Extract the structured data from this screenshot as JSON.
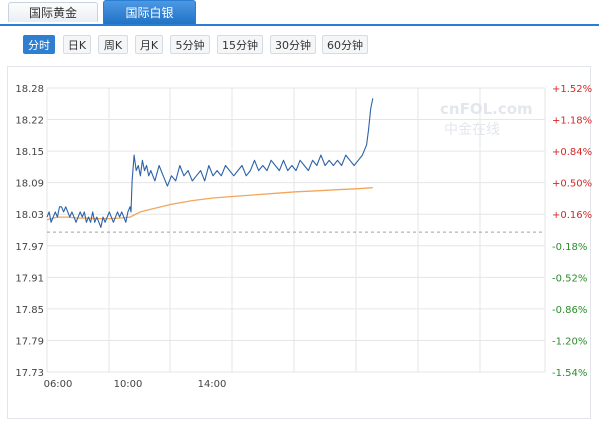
{
  "tabs": [
    {
      "label": "国际黄金",
      "active": false
    },
    {
      "label": "国际白银",
      "active": true
    }
  ],
  "periods": [
    "分时",
    "日K",
    "周K",
    "月K",
    "5分钟",
    "15分钟",
    "30分钟",
    "60分钟"
  ],
  "active_period": "分时",
  "watermark": {
    "top": "cnFOL.com",
    "bottom": "中金在线"
  },
  "colors": {
    "price_line": "#2b62a8",
    "avg_line": "#f2a65a",
    "up": "#d62728",
    "down": "#2c8c2c",
    "axis_text": "#444444",
    "accent": "#2a7fd4"
  },
  "chart_data": {
    "type": "line",
    "title": "",
    "xlabel": "",
    "ylabel": "",
    "ylim": [
      17.73,
      18.28
    ],
    "y_ticks": [
      "18.28",
      "18.22",
      "18.15",
      "18.09",
      "18.03",
      "17.97",
      "17.91",
      "17.85",
      "17.79",
      "17.73"
    ],
    "right_ticks": [
      "+1.52%",
      "+1.18%",
      "+0.84%",
      "+0.50%",
      "+0.16%",
      "-0.18%",
      "-0.52%",
      "-0.86%",
      "-1.20%",
      "-1.54%"
    ],
    "x_ticks": [
      "06:00",
      "10:00",
      "14:00"
    ],
    "reference_price": 18.001,
    "series": [
      {
        "x": [
          0,
          0.1,
          0.2,
          0.3,
          0.4,
          0.5,
          0.6,
          0.7,
          0.8,
          0.9,
          1.0,
          1.1,
          1.2,
          1.3,
          1.4,
          1.5,
          1.6,
          1.7,
          1.8,
          1.9,
          2.0,
          2.1,
          2.2,
          2.3,
          2.4,
          2.5,
          2.6,
          2.7,
          2.8,
          2.9,
          3.0,
          3.1,
          3.2,
          3.3,
          3.4,
          3.5,
          3.6,
          3.7,
          3.8,
          3.9,
          4.0,
          4.05,
          4.1,
          4.2,
          4.3,
          4.4,
          4.5,
          4.6,
          4.7,
          4.8,
          4.9,
          5.0,
          5.2,
          5.4,
          5.6,
          5.8,
          6.0,
          6.2,
          6.4,
          6.6,
          6.8,
          7.0,
          7.2,
          7.4,
          7.6,
          7.8,
          8.0,
          8.2,
          8.4,
          8.6,
          8.8,
          9.0,
          9.2,
          9.4,
          9.6,
          9.8,
          10.0,
          10.2,
          10.4,
          10.6,
          10.8,
          11.0,
          11.2,
          11.4,
          11.6,
          11.8,
          12.0,
          12.2,
          12.4,
          12.6,
          12.8,
          13.0,
          13.2,
          13.4,
          13.6,
          13.8,
          14.0,
          14.2,
          14.4,
          14.6,
          14.8,
          15.0,
          15.2,
          15.4,
          15.5,
          15.6,
          15.7
        ],
        "values": [
          18.03,
          18.04,
          18.02,
          18.03,
          18.04,
          18.03,
          18.05,
          18.05,
          18.04,
          18.05,
          18.04,
          18.03,
          18.04,
          18.03,
          18.02,
          18.03,
          18.04,
          18.03,
          18.04,
          18.02,
          18.03,
          18.02,
          18.04,
          18.02,
          18.03,
          18.02,
          18.01,
          18.03,
          18.02,
          18.03,
          18.04,
          18.03,
          18.02,
          18.03,
          18.04,
          18.03,
          18.04,
          18.03,
          18.02,
          18.04,
          18.05,
          18.04,
          18.1,
          18.15,
          18.12,
          18.13,
          18.11,
          18.14,
          18.12,
          18.13,
          18.11,
          18.12,
          18.1,
          18.13,
          18.11,
          18.09,
          18.11,
          18.1,
          18.13,
          18.11,
          18.12,
          18.1,
          18.11,
          18.12,
          18.1,
          18.13,
          18.11,
          18.12,
          18.11,
          18.13,
          18.12,
          18.11,
          18.12,
          18.13,
          18.11,
          18.12,
          18.14,
          18.12,
          18.13,
          18.12,
          18.14,
          18.13,
          18.12,
          18.14,
          18.12,
          18.13,
          18.12,
          18.14,
          18.13,
          18.12,
          18.14,
          18.13,
          18.15,
          18.13,
          18.14,
          18.13,
          18.14,
          18.13,
          18.15,
          18.14,
          18.13,
          18.14,
          18.15,
          18.17,
          18.2,
          18.24,
          18.26
        ]
      },
      {
        "x": [
          0,
          0.5,
          1.0,
          1.5,
          2.0,
          2.5,
          3.0,
          3.5,
          4.0,
          4.5,
          5.0,
          6.0,
          7.0,
          8.0,
          9.0,
          10.0,
          11.0,
          12.0,
          13.0,
          14.0,
          15.0,
          15.7
        ],
        "values": [
          18.025,
          18.03,
          18.03,
          18.028,
          18.028,
          18.027,
          18.027,
          18.028,
          18.03,
          18.04,
          18.045,
          18.055,
          18.062,
          18.067,
          18.07,
          18.073,
          18.076,
          18.079,
          18.081,
          18.083,
          18.085,
          18.087
        ]
      }
    ]
  }
}
